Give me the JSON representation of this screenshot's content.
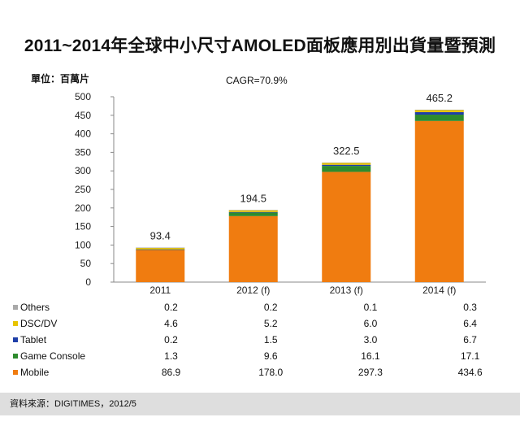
{
  "title": "2011~2014年全球中小尺寸AMOLED面板應用別出貨量暨預測",
  "unit_label": "單位：百萬片",
  "cagr_label": "CAGR=70.9%",
  "source": "資料來源：DIGITIMES，2012/5",
  "colors": {
    "Mobile": "#f07c10",
    "Game Console": "#2e8b2e",
    "Tablet": "#1f3fa8",
    "DSC/DV": "#e8c400",
    "Others": "#a9a9a9"
  },
  "chart_data": {
    "type": "bar",
    "stacked": true,
    "categories": [
      "2011",
      "2012 (f)",
      "2013 (f)",
      "2014 (f)"
    ],
    "totals": [
      "93.4",
      "194.5",
      "322.5",
      "465.2"
    ],
    "ylim": [
      0,
      500
    ],
    "yticks": [
      "0",
      "50",
      "100",
      "150",
      "200",
      "250",
      "300",
      "350",
      "400",
      "450",
      "500"
    ],
    "series": [
      {
        "name": "Mobile",
        "values": [
          86.9,
          178.0,
          297.3,
          434.6
        ],
        "labels": [
          "86.9",
          "178.0",
          "297.3",
          "434.6"
        ]
      },
      {
        "name": "Game Console",
        "values": [
          1.3,
          9.6,
          16.1,
          17.1
        ],
        "labels": [
          "1.3",
          "9.6",
          "16.1",
          "17.1"
        ]
      },
      {
        "name": "Tablet",
        "values": [
          0.2,
          1.5,
          3.0,
          6.7
        ],
        "labels": [
          "0.2",
          "1.5",
          "3.0",
          "6.7"
        ]
      },
      {
        "name": "DSC/DV",
        "values": [
          4.6,
          5.2,
          6.0,
          6.4
        ],
        "labels": [
          "4.6",
          "5.2",
          "6.0",
          "6.4"
        ]
      },
      {
        "name": "Others",
        "values": [
          0.2,
          0.2,
          0.1,
          0.3
        ],
        "labels": [
          "0.2",
          "0.2",
          "0.1",
          "0.3"
        ]
      }
    ],
    "table_order": [
      "Others",
      "DSC/DV",
      "Tablet",
      "Game Console",
      "Mobile"
    ]
  }
}
